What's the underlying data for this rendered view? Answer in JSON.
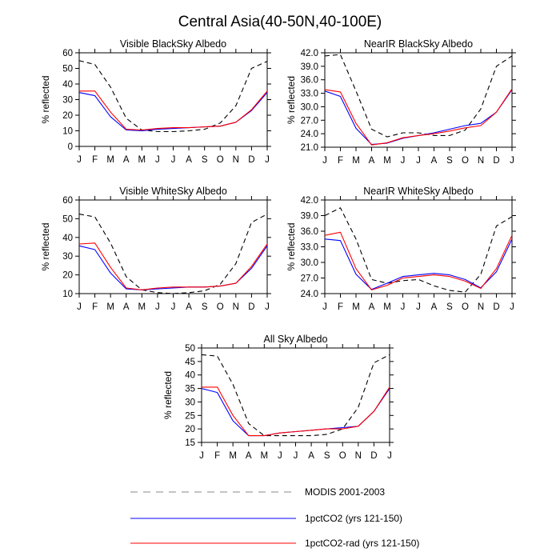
{
  "figure": {
    "title": "Central Asia(40-50N,40-100E)"
  },
  "chart_data": [
    {
      "type": "line",
      "title": "Visible BlackSky Albedo",
      "ylabel": "% reflected",
      "categories": [
        "J",
        "F",
        "M",
        "A",
        "M",
        "J",
        "J",
        "A",
        "S",
        "O",
        "N",
        "D",
        "J"
      ],
      "ylim": [
        0,
        60
      ],
      "yticks": [
        "0",
        "10",
        "20",
        "30",
        "40",
        "50",
        "60"
      ],
      "series": [
        {
          "name": "MODIS 2001-2003",
          "color": "#000000",
          "dash": "dashed",
          "values": [
            55,
            52.5,
            38,
            18,
            10.5,
            9.5,
            9.5,
            10,
            11,
            15,
            26,
            50,
            54.5
          ]
        },
        {
          "name": "1pctCO2 (yrs 121-150)",
          "color": "#0000ff",
          "dash": "solid",
          "values": [
            34.5,
            32.5,
            19,
            10.5,
            10,
            11,
            11.5,
            12,
            12.5,
            13,
            15.5,
            23,
            34.5
          ]
        },
        {
          "name": "1pctCO2-rad (yrs 121-150)",
          "color": "#ff0000",
          "dash": "solid",
          "values": [
            35.5,
            35.5,
            22,
            11,
            10.5,
            11.5,
            12,
            12,
            12.5,
            13,
            15.5,
            23.5,
            35.5
          ]
        }
      ]
    },
    {
      "type": "line",
      "title": "NearIR BlackSky Albedo",
      "ylabel": "% reflected",
      "categories": [
        "J",
        "F",
        "M",
        "A",
        "M",
        "J",
        "J",
        "A",
        "S",
        "O",
        "N",
        "D",
        "J"
      ],
      "ylim": [
        21,
        42
      ],
      "yticks": [
        "21.0",
        "24.0",
        "27.0",
        "30.0",
        "33.0",
        "36.0",
        "39.0",
        "42.0"
      ],
      "series": [
        {
          "name": "MODIS 2001-2003",
          "color": "#000000",
          "dash": "dashed",
          "values": [
            41.3,
            41.6,
            33.5,
            25,
            23.3,
            24.2,
            24.2,
            23.6,
            23.6,
            24.8,
            29.5,
            39,
            41.3
          ]
        },
        {
          "name": "1pctCO2 (yrs 121-150)",
          "color": "#0000ff",
          "dash": "solid",
          "values": [
            33.5,
            32.3,
            25.2,
            21.6,
            21.9,
            23,
            23.6,
            24.2,
            25,
            25.8,
            26.3,
            28.8,
            33.8
          ]
        },
        {
          "name": "1pctCO2-rad (yrs 121-150)",
          "color": "#ff0000",
          "dash": "solid",
          "values": [
            33.8,
            33.3,
            26.3,
            21.5,
            22,
            23.1,
            23.6,
            24,
            24.6,
            25.3,
            25.8,
            28.8,
            34
          ]
        }
      ]
    },
    {
      "type": "line",
      "title": "Visible WhiteSky Albedo",
      "ylabel": "% reflected",
      "categories": [
        "J",
        "F",
        "M",
        "A",
        "M",
        "J",
        "J",
        "A",
        "S",
        "O",
        "N",
        "D",
        "J"
      ],
      "ylim": [
        10,
        60
      ],
      "yticks": [
        "10",
        "20",
        "30",
        "40",
        "50",
        "60"
      ],
      "series": [
        {
          "name": "MODIS 2001-2003",
          "color": "#000000",
          "dash": "dashed",
          "values": [
            52.5,
            51,
            37,
            19,
            12,
            10.5,
            10,
            10.5,
            11.5,
            15,
            26,
            48,
            52.5
          ]
        },
        {
          "name": "1pctCO2 (yrs 121-150)",
          "color": "#0000ff",
          "dash": "solid",
          "values": [
            35.5,
            33.5,
            21,
            12.5,
            12,
            12.5,
            13,
            13.5,
            13.5,
            14,
            15.5,
            23.5,
            35.5
          ]
        },
        {
          "name": "1pctCO2-rad (yrs 121-150)",
          "color": "#ff0000",
          "dash": "solid",
          "values": [
            36.5,
            37,
            24,
            13,
            12,
            13,
            13.5,
            13.5,
            13.5,
            14,
            15.5,
            24.5,
            36.5
          ]
        }
      ]
    },
    {
      "type": "line",
      "title": "NearIR WhiteSky Albedo",
      "ylabel": "% reflected",
      "categories": [
        "J",
        "F",
        "M",
        "A",
        "M",
        "J",
        "J",
        "A",
        "S",
        "O",
        "N",
        "D",
        "J"
      ],
      "ylim": [
        24,
        42
      ],
      "yticks": [
        "24.0",
        "27.0",
        "30.0",
        "33.0",
        "36.0",
        "39.0",
        "42.0"
      ],
      "series": [
        {
          "name": "MODIS 2001-2003",
          "color": "#000000",
          "dash": "dashed",
          "values": [
            39,
            40.5,
            34.5,
            26.7,
            26,
            26.5,
            26.7,
            25.5,
            24.6,
            24.3,
            27.7,
            37,
            38.8
          ]
        },
        {
          "name": "1pctCO2 (yrs 121-150)",
          "color": "#0000ff",
          "dash": "solid",
          "values": [
            34.5,
            34.2,
            27.7,
            24.8,
            26,
            27.3,
            27.6,
            27.9,
            27.6,
            26.7,
            25.1,
            28.2,
            34.5
          ]
        },
        {
          "name": "1pctCO2-rad (yrs 121-150)",
          "color": "#ff0000",
          "dash": "solid",
          "values": [
            35.2,
            35.8,
            28.8,
            24.7,
            25.6,
            27,
            27.3,
            27.6,
            27.3,
            26.4,
            25,
            28.8,
            35.2
          ]
        }
      ]
    },
    {
      "type": "line",
      "title": "All Sky Albedo",
      "ylabel": "% reflected",
      "categories": [
        "J",
        "F",
        "M",
        "A",
        "M",
        "J",
        "J",
        "A",
        "S",
        "O",
        "N",
        "D",
        "J"
      ],
      "ylim": [
        15,
        50
      ],
      "yticks": [
        "15",
        "20",
        "25",
        "30",
        "35",
        "40",
        "45",
        "50"
      ],
      "series": [
        {
          "name": "MODIS 2001-2003",
          "color": "#000000",
          "dash": "dashed",
          "values": [
            47.5,
            47,
            36.5,
            22,
            17.5,
            17.5,
            17.5,
            17.5,
            18,
            20,
            28,
            44.5,
            47.5
          ]
        },
        {
          "name": "1pctCO2 (yrs 121-150)",
          "color": "#0000ff",
          "dash": "solid",
          "values": [
            35,
            33.5,
            23,
            17.5,
            17.5,
            18.5,
            19,
            19.5,
            20,
            20.5,
            21,
            26.5,
            35
          ]
        },
        {
          "name": "1pctCO2-rad (yrs 121-150)",
          "color": "#ff0000",
          "dash": "solid",
          "values": [
            35.5,
            35.5,
            25,
            17.5,
            17.5,
            18.5,
            19,
            19.5,
            20,
            20,
            21,
            26.5,
            35.5
          ]
        }
      ]
    }
  ],
  "legend": [
    {
      "label": "MODIS 2001-2003",
      "color": "#000000",
      "dash": "dashed"
    },
    {
      "label": "1pctCO2 (yrs 121-150)",
      "color": "#0000ff",
      "dash": "solid"
    },
    {
      "label": "1pctCO2-rad (yrs 121-150)",
      "color": "#ff0000",
      "dash": "solid"
    }
  ]
}
